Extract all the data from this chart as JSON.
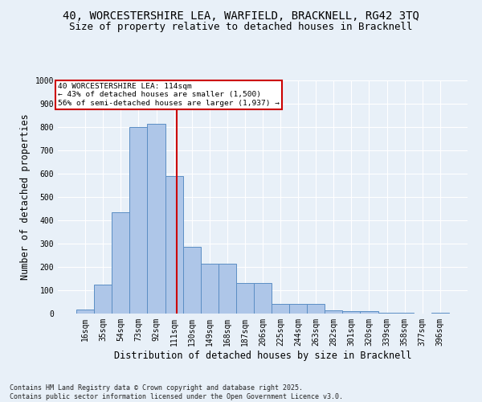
{
  "title_line1": "40, WORCESTERSHIRE LEA, WARFIELD, BRACKNELL, RG42 3TQ",
  "title_line2": "Size of property relative to detached houses in Bracknell",
  "xlabel": "Distribution of detached houses by size in Bracknell",
  "ylabel": "Number of detached properties",
  "categories": [
    "16sqm",
    "35sqm",
    "54sqm",
    "73sqm",
    "92sqm",
    "111sqm",
    "130sqm",
    "149sqm",
    "168sqm",
    "187sqm",
    "206sqm",
    "225sqm",
    "244sqm",
    "263sqm",
    "282sqm",
    "301sqm",
    "320sqm",
    "339sqm",
    "358sqm",
    "377sqm",
    "396sqm"
  ],
  "bar_values": [
    18,
    125,
    435,
    800,
    815,
    590,
    285,
    215,
    215,
    130,
    130,
    42,
    42,
    40,
    13,
    10,
    10,
    4,
    4,
    1,
    4
  ],
  "bar_color": "#aec6e8",
  "bar_edge_color": "#5b8ec4",
  "annotation_line1": "40 WORCESTERSHIRE LEA: 114sqm",
  "annotation_line2": "← 43% of detached houses are smaller (1,500)",
  "annotation_line3": "56% of semi-detached houses are larger (1,937) →",
  "vline_color": "#cc0000",
  "annotation_box_color": "#ffffff",
  "annotation_box_edge": "#cc0000",
  "footer_line1": "Contains HM Land Registry data © Crown copyright and database right 2025.",
  "footer_line2": "Contains public sector information licensed under the Open Government Licence v3.0.",
  "ylim": [
    0,
    1000
  ],
  "yticks": [
    0,
    100,
    200,
    300,
    400,
    500,
    600,
    700,
    800,
    900,
    1000
  ],
  "bg_color": "#e8f0f8",
  "title_fontsize": 10,
  "subtitle_fontsize": 9,
  "tick_fontsize": 7,
  "label_fontsize": 8.5
}
